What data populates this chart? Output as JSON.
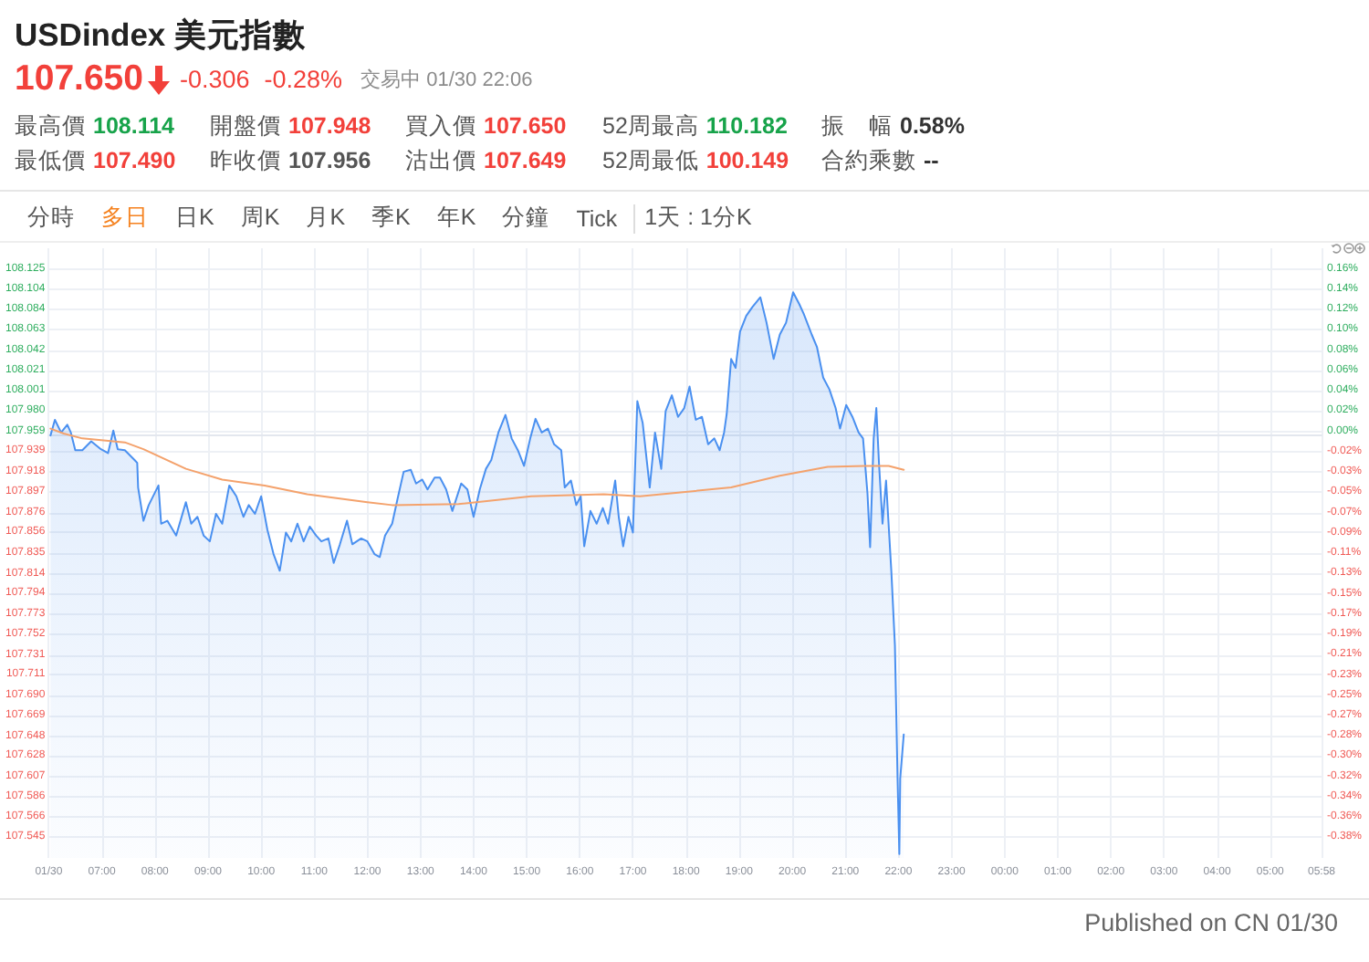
{
  "chart_data": {
    "type": "area",
    "title": "USDindex 美元指數",
    "annotations": [
      "107.650",
      "-0.306",
      "-0.28%",
      "交易中 01/30 22:06",
      "最高價",
      "108.114",
      "開盤價",
      "107.948",
      "買入價",
      "107.650",
      "52周最高",
      "110.182",
      "振　幅",
      "0.58%",
      "最低價",
      "107.490",
      "昨收價",
      "107.956",
      "沽出價",
      "107.649",
      "52周最低",
      "100.149",
      "合約乘數",
      "--",
      "分時",
      "多日",
      "日K",
      "周K",
      "月K",
      "季K",
      "年K",
      "分鐘",
      "Tick",
      "1天 : 1分K",
      "Published on CN 01/30"
    ],
    "series": [
      {
        "color": "#4a90f0",
        "x": [
          "--01-30T06:02",
          "--01-30T06:07",
          "--01-30T06:14",
          "--01-30T06:21",
          "--01-30T06:25",
          "--01-30T06:30",
          "--01-30T06:38",
          "--01-30T06:48",
          "--01-30T06:59",
          "--01-30T07:07",
          "--01-30T07:13",
          "--01-30T07:18",
          "--01-30T07:26",
          "--01-30T07:37",
          "--01-30T07:40",
          "--01-30T07:41",
          "--01-30T07:47",
          "--01-30T07:53",
          "--01-30T08:04",
          "--01-30T08:07",
          "--01-30T08:14",
          "--01-30T08:24",
          "--01-30T08:35",
          "--01-30T08:41",
          "--01-30T08:48",
          "--01-30T08:55",
          "--01-30T09:02",
          "--01-30T09:09",
          "--01-30T09:16",
          "--01-30T09:24",
          "--01-30T09:32",
          "--01-30T09:40",
          "--01-30T09:46",
          "--01-30T09:53",
          "--01-30T10:00",
          "--01-30T10:07",
          "--01-30T10:14",
          "--01-30T10:21",
          "--01-30T10:28",
          "--01-30T10:34",
          "--01-30T10:41",
          "--01-30T10:48",
          "--01-30T10:55",
          "--01-30T11:02",
          "--01-30T11:08",
          "--01-30T11:16",
          "--01-30T11:22",
          "--01-30T11:29",
          "--01-30T11:37",
          "--01-30T11:43",
          "--01-30T11:53",
          "--01-30T12:00",
          "--01-30T12:08",
          "--01-30T12:14",
          "--01-30T12:20",
          "--01-30T12:28",
          "--01-30T12:34",
          "--01-30T12:41",
          "--01-30T12:49",
          "--01-30T12:55",
          "--01-30T13:02",
          "--01-30T13:08",
          "--01-30T13:16",
          "--01-30T13:22",
          "--01-30T13:29",
          "--01-30T13:36",
          "--01-30T13:46",
          "--01-30T13:53",
          "--01-30T14:00",
          "--01-30T14:07",
          "--01-30T14:14",
          "--01-30T14:20",
          "--01-30T14:28",
          "--01-30T14:36",
          "--01-30T14:43",
          "--01-30T14:50",
          "--01-30T14:57",
          "--01-30T15:04",
          "--01-30T15:10",
          "--01-30T15:17",
          "--01-30T15:24",
          "--01-30T15:31",
          "--01-30T15:39",
          "--01-30T15:43",
          "--01-30T15:50",
          "--01-30T15:56",
          "--01-30T16:01",
          "--01-30T16:05",
          "--01-30T16:12",
          "--01-30T16:19",
          "--01-30T16:26",
          "--01-30T16:32",
          "--01-30T16:40",
          "--01-30T16:44",
          "--01-30T16:49",
          "--01-30T16:55",
          "--01-30T17:00",
          "--01-30T17:05",
          "--01-30T17:11",
          "--01-30T17:19",
          "--01-30T17:25",
          "--01-30T17:32",
          "--01-30T17:37",
          "--01-30T17:44",
          "--01-30T17:51",
          "--01-30T17:58",
          "--01-30T18:04",
          "--01-30T18:11",
          "--01-30T18:18",
          "--01-30T18:25",
          "--01-30T18:32",
          "--01-30T18:38",
          "--01-30T18:43",
          "--01-30T18:46",
          "--01-30T18:51",
          "--01-30T18:56",
          "--01-30T19:01",
          "--01-30T19:08",
          "--01-30T19:15",
          "--01-30T19:24",
          "--01-30T19:31",
          "--01-30T19:39",
          "--01-30T19:46",
          "--01-30T19:53",
          "--01-30T20:01",
          "--01-30T20:08",
          "--01-30T20:13",
          "--01-30T20:22",
          "--01-30T20:28",
          "--01-30T20:35",
          "--01-30T20:42",
          "--01-30T20:49",
          "--01-30T20:54",
          "--01-30T21:01",
          "--01-30T21:08",
          "--01-30T21:15",
          "--01-30T21:20",
          "--01-30T21:25",
          "--01-30T21:28",
          "--01-30T21:32",
          "--01-30T21:35",
          "--01-30T21:38",
          "--01-30T21:42",
          "--01-30T21:46",
          "--01-30T21:52",
          "--01-30T21:56",
          "--01-30T21:59",
          "--01-30T22:01",
          "--01-30T22:02",
          "--01-30T22:06"
        ],
        "values": [
          107.955,
          107.971,
          107.958,
          107.966,
          107.958,
          107.94,
          107.94,
          107.949,
          107.941,
          107.937,
          107.96,
          107.941,
          107.94,
          107.93,
          107.927,
          107.902,
          107.868,
          107.884,
          107.904,
          107.865,
          107.868,
          107.853,
          107.887,
          107.865,
          107.872,
          107.853,
          107.847,
          107.875,
          107.865,
          107.904,
          107.893,
          107.872,
          107.884,
          107.875,
          107.893,
          107.859,
          107.834,
          107.817,
          107.856,
          107.847,
          107.865,
          107.847,
          107.862,
          107.853,
          107.847,
          107.85,
          107.825,
          107.844,
          107.868,
          107.844,
          107.85,
          107.847,
          107.834,
          107.831,
          107.853,
          107.865,
          107.89,
          107.918,
          107.92,
          107.906,
          107.91,
          107.9,
          107.912,
          107.912,
          107.9,
          107.878,
          107.906,
          107.9,
          107.872,
          107.9,
          107.921,
          107.93,
          107.958,
          107.976,
          107.952,
          107.94,
          107.924,
          107.952,
          107.972,
          107.958,
          107.962,
          107.946,
          107.94,
          107.902,
          107.909,
          107.884,
          107.893,
          107.842,
          107.878,
          107.865,
          107.881,
          107.865,
          107.909,
          107.872,
          107.842,
          107.872,
          107.856,
          107.99,
          107.968,
          107.902,
          107.958,
          107.921,
          107.98,
          107.996,
          107.974,
          107.983,
          108.005,
          107.971,
          107.974,
          107.946,
          107.952,
          107.94,
          107.958,
          107.977,
          108.033,
          108.024,
          108.061,
          108.077,
          108.086,
          108.096,
          108.07,
          108.033,
          108.058,
          108.07,
          108.101,
          108.089,
          108.079,
          108.058,
          108.045,
          108.014,
          108.002,
          107.983,
          107.962,
          107.986,
          107.974,
          107.958,
          107.952,
          107.896,
          107.841,
          107.952,
          107.983,
          107.927,
          107.865,
          107.909,
          107.816,
          107.741,
          107.605,
          107.528,
          107.605,
          107.65
        ]
      },
      {
        "type": "line",
        "color": "#f4a26c",
        "x": [
          "--01-30T06:02",
          "--01-30T06:17",
          "--01-30T06:38",
          "--01-30T07:26",
          "--01-30T07:47",
          "--01-30T08:35",
          "--01-30T09:16",
          "--01-30T10:04",
          "--01-30T10:52",
          "--01-30T12:00",
          "--01-30T12:28",
          "--01-30T13:43",
          "--01-30T15:05",
          "--01-30T16:27",
          "--01-30T17:08",
          "--01-30T18:51",
          "--01-30T19:46",
          "--01-30T20:40",
          "--01-30T21:22",
          "--01-30T21:49",
          "--01-30T22:06"
        ],
        "values": [
          107.962,
          107.957,
          107.952,
          107.948,
          107.941,
          107.921,
          107.91,
          107.904,
          107.895,
          107.887,
          107.884,
          107.885,
          107.893,
          107.895,
          107.893,
          107.902,
          107.914,
          107.923,
          107.924,
          107.924,
          107.92
        ]
      }
    ],
    "xlim": [
      "--01-30T06:00",
      "--01-31T05:58"
    ],
    "xticks": [
      {
        "value": "--01-30T06:00",
        "label": "01/30"
      },
      {
        "value": "--01-30T07:00",
        "label": "07:00"
      },
      {
        "value": "--01-30T08:00",
        "label": "08:00"
      },
      {
        "value": "--01-30T09:00",
        "label": "09:00"
      },
      {
        "value": "--01-30T10:00",
        "label": "10:00"
      },
      {
        "value": "--01-30T11:00",
        "label": "11:00"
      },
      {
        "value": "--01-30T12:00",
        "label": "12:00"
      },
      {
        "value": "--01-30T13:00",
        "label": "13:00"
      },
      {
        "value": "--01-30T14:00",
        "label": "14:00"
      },
      {
        "value": "--01-30T15:00",
        "label": "15:00"
      },
      {
        "value": "--01-30T16:00",
        "label": "16:00"
      },
      {
        "value": "--01-30T17:00",
        "label": "17:00"
      },
      {
        "value": "--01-30T18:00",
        "label": "18:00"
      },
      {
        "value": "--01-30T19:00",
        "label": "19:00"
      },
      {
        "value": "--01-30T20:00",
        "label": "20:00"
      },
      {
        "value": "--01-30T21:00",
        "label": "21:00"
      },
      {
        "value": "--01-30T22:00",
        "label": "22:00"
      },
      {
        "value": "--01-30T23:00",
        "label": "23:00"
      },
      {
        "value": "--01-31T00:00",
        "label": "00:00"
      },
      {
        "value": "--01-31T01:00",
        "label": "01:00"
      },
      {
        "value": "--01-31T02:00",
        "label": "02:00"
      },
      {
        "value": "--01-31T03:00",
        "label": "03:00"
      },
      {
        "value": "--01-31T04:00",
        "label": "04:00"
      },
      {
        "value": "--01-31T05:00",
        "label": "05:00"
      },
      {
        "value": "--01-31T05:58",
        "label": "05:58"
      }
    ],
    "ylim": [
      107.524,
      108.146
    ],
    "yticks": [
      108.125,
      108.104,
      108.084,
      108.063,
      108.042,
      108.021,
      108.001,
      {
        "value": 107.98,
        "label": "107.980"
      },
      107.959,
      107.939,
      107.918,
      107.897,
      107.876,
      107.856,
      107.835,
      107.814,
      107.794,
      107.773,
      107.752,
      107.731,
      107.711,
      {
        "value": 107.69,
        "label": "107.690"
      },
      107.669,
      107.648,
      107.628,
      107.607,
      107.586,
      107.566,
      107.545
    ],
    "y2lim": [
      -0.4005,
      0.1776
    ],
    "y2ticks": [
      {
        "value": 0.158,
        "label": "0.16%"
      },
      {
        "value": 0.13875,
        "label": "0.14%"
      },
      {
        "value": 0.1195,
        "label": "0.12%"
      },
      {
        "value": 0.10025,
        "label": "0.10%"
      },
      {
        "value": 0.081,
        "label": "0.08%"
      },
      {
        "value": 0.06175,
        "label": "0.06%"
      },
      {
        "value": 0.0425,
        "label": "0.04%"
      },
      {
        "value": 0.02325,
        "label": "0.02%"
      },
      {
        "value": 0.004,
        "label": "0.00%"
      },
      {
        "value": -0.01525,
        "label": "-0.02%"
      },
      {
        "value": -0.0345,
        "label": "-0.03%"
      },
      {
        "value": -0.05375,
        "label": "-0.05%"
      },
      {
        "value": -0.073,
        "label": "-0.07%"
      },
      {
        "value": -0.09225,
        "label": "-0.09%"
      },
      {
        "value": -0.1115,
        "label": "-0.11%"
      },
      {
        "value": -0.13075,
        "label": "-0.13%"
      },
      {
        "value": -0.15,
        "label": "-0.15%"
      },
      {
        "value": -0.16925,
        "label": "-0.17%"
      },
      {
        "value": -0.1885,
        "label": "-0.19%"
      },
      {
        "value": -0.20775,
        "label": "-0.21%"
      },
      {
        "value": -0.227,
        "label": "-0.23%"
      },
      {
        "value": -0.24625,
        "label": "-0.25%"
      },
      {
        "value": -0.2655,
        "label": "-0.27%"
      },
      {
        "value": -0.28475,
        "label": "-0.28%"
      },
      {
        "value": -0.304,
        "label": "-0.30%"
      },
      {
        "value": -0.32325,
        "label": "-0.32%"
      },
      {
        "value": -0.3425,
        "label": "-0.34%"
      },
      {
        "value": -0.36175,
        "label": "-0.36%"
      },
      {
        "value": -0.381,
        "label": "-0.38%"
      }
    ],
    "grid": true,
    "marker": "none"
  }
}
